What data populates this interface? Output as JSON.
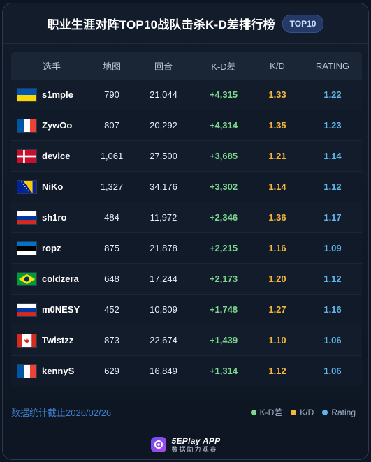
{
  "header": {
    "title": "职业生涯对阵TOP10战队击杀K-D差排行榜",
    "badge": "TOP10"
  },
  "table": {
    "columns": [
      "选手",
      "地图",
      "回合",
      "K-D差",
      "K/D",
      "RATING"
    ],
    "rows": [
      {
        "flag": "ukraine",
        "player": "s1mple",
        "maps": "790",
        "rounds": "21,044",
        "kd_diff": "+4,315",
        "kd": "1.33",
        "rating": "1.22"
      },
      {
        "flag": "france",
        "player": "ZywOo",
        "maps": "807",
        "rounds": "20,292",
        "kd_diff": "+4,314",
        "kd": "1.35",
        "rating": "1.23"
      },
      {
        "flag": "denmark",
        "player": "device",
        "maps": "1,061",
        "rounds": "27,500",
        "kd_diff": "+3,685",
        "kd": "1.21",
        "rating": "1.14"
      },
      {
        "flag": "bosnia",
        "player": "NiKo",
        "maps": "1,327",
        "rounds": "34,176",
        "kd_diff": "+3,302",
        "kd": "1.14",
        "rating": "1.12"
      },
      {
        "flag": "russia",
        "player": "sh1ro",
        "maps": "484",
        "rounds": "11,972",
        "kd_diff": "+2,346",
        "kd": "1.36",
        "rating": "1.17"
      },
      {
        "flag": "estonia",
        "player": "ropz",
        "maps": "875",
        "rounds": "21,878",
        "kd_diff": "+2,215",
        "kd": "1.16",
        "rating": "1.09"
      },
      {
        "flag": "brazil",
        "player": "coldzera",
        "maps": "648",
        "rounds": "17,244",
        "kd_diff": "+2,173",
        "kd": "1.20",
        "rating": "1.12"
      },
      {
        "flag": "russia",
        "player": "m0NESY",
        "maps": "452",
        "rounds": "10,809",
        "kd_diff": "+1,748",
        "kd": "1.27",
        "rating": "1.16"
      },
      {
        "flag": "canada",
        "player": "Twistzz",
        "maps": "873",
        "rounds": "22,674",
        "kd_diff": "+1,439",
        "kd": "1.10",
        "rating": "1.06"
      },
      {
        "flag": "france",
        "player": "kennyS",
        "maps": "629",
        "rounds": "16,849",
        "kd_diff": "+1,314",
        "kd": "1.12",
        "rating": "1.06"
      }
    ]
  },
  "footer": {
    "note": "数据统计截止2026/02/26",
    "legend": [
      {
        "label": "K-D差",
        "color": "#7dd88f"
      },
      {
        "label": "K/D",
        "color": "#f5b63c"
      },
      {
        "label": "Rating",
        "color": "#5fb6ec"
      }
    ]
  },
  "brand": {
    "name": "5EPlay APP",
    "sub": "数据助力观赛"
  },
  "colors": {
    "kd_diff": "#7dd88f",
    "kd": "#f5b63c",
    "rating": "#5fb6ec",
    "note": "#3f7fcf"
  }
}
